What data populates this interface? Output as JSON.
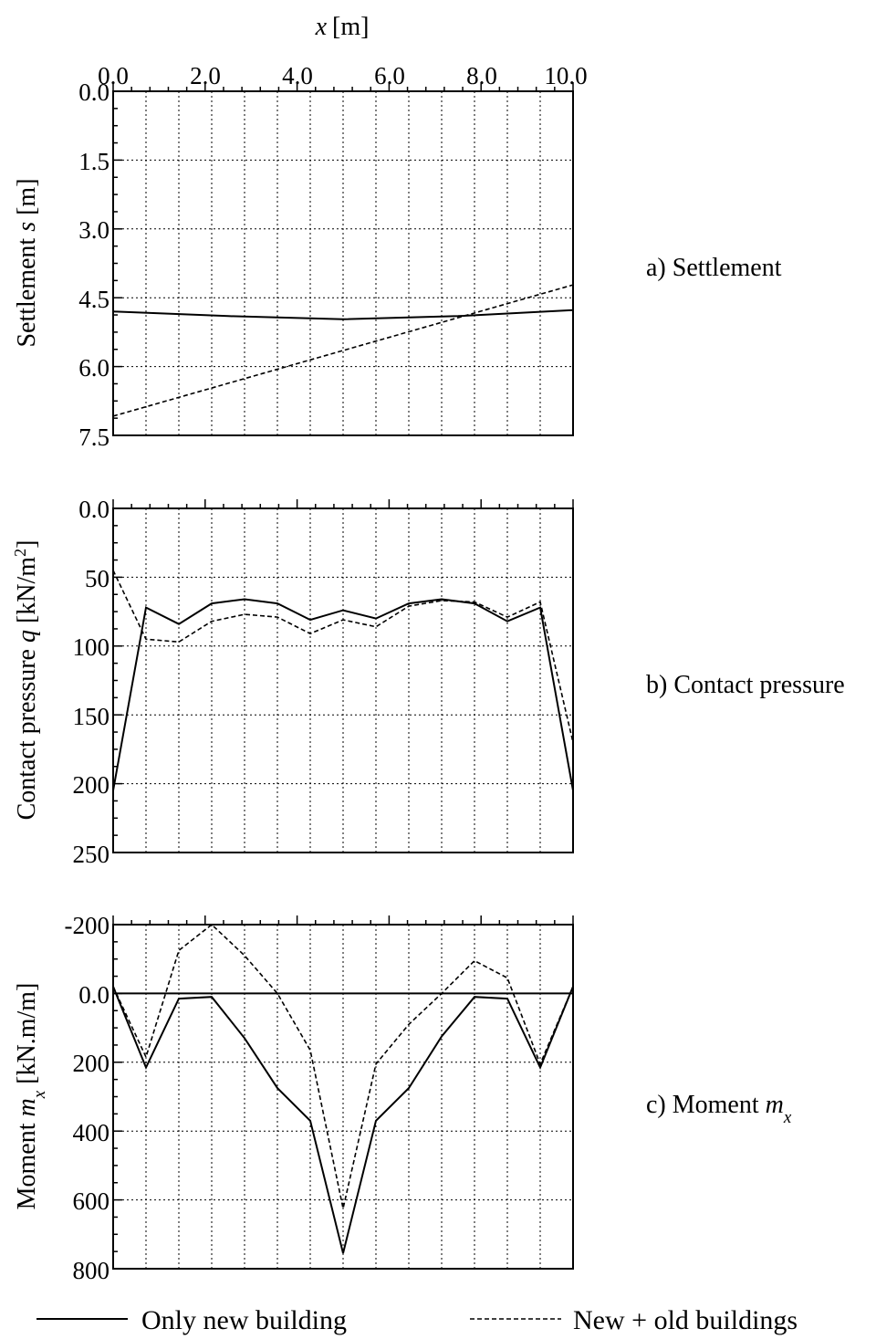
{
  "xaxis": {
    "label": "x",
    "unit": "[m]",
    "tick_labels": [
      "0.0",
      "2.0",
      "4.0",
      "6.0",
      "8.0",
      "10.0"
    ]
  },
  "panels": [
    {
      "label": "a) Settlement",
      "ylabel": {
        "text": "Settlement ",
        "symbol": "s",
        "unit": " [m]"
      },
      "tick_labels": [
        "0.0",
        "1.5",
        "3.0",
        "4.5",
        "6.0",
        "7.5"
      ]
    },
    {
      "label": "b) Contact pressure",
      "ylabel": {
        "text": "Contact pressure ",
        "symbol": "q",
        "unit": " [kN/m",
        "sup": "2",
        "unit_end": "]"
      },
      "tick_labels": [
        "0.0",
        "50",
        "100",
        "150",
        "200",
        "250"
      ]
    },
    {
      "label_text": "c) Moment ",
      "label_symbol": "m",
      "label_sub": "x",
      "ylabel": {
        "text": "Moment ",
        "symbol": "m",
        "sub": "x",
        "unit": " [kN.m/m]"
      },
      "tick_labels": [
        "-200",
        "0.0",
        "200",
        "400",
        "600",
        "800"
      ]
    }
  ],
  "legend": {
    "solid": "Only new building",
    "dashed": "New + old buildings"
  },
  "chart_data": [
    {
      "type": "line",
      "title": "a) Settlement",
      "xlabel": "x [m]",
      "ylabel": "Settlement s [m]",
      "xlim": [
        0,
        10
      ],
      "ylim": [
        0,
        7.5
      ],
      "y_inverted": true,
      "grid": true,
      "x": [
        0,
        2.5,
        5,
        7.5,
        10
      ],
      "series": [
        {
          "name": "Only new building",
          "style": "solid",
          "x": [
            0,
            2.5,
            5,
            7.5,
            10
          ],
          "values": [
            4.8,
            4.9,
            4.97,
            4.9,
            4.77
          ]
        },
        {
          "name": "New + old buildings",
          "style": "dashed",
          "x": [
            0,
            10
          ],
          "values": [
            7.08,
            4.22
          ]
        }
      ]
    },
    {
      "type": "line",
      "title": "b) Contact pressure",
      "xlabel": "x [m]",
      "ylabel": "Contact pressure q [kN/m2]",
      "xlim": [
        0,
        10
      ],
      "ylim": [
        0,
        250
      ],
      "y_inverted": true,
      "grid": true,
      "x": [
        0,
        0.714,
        1.429,
        2.143,
        2.857,
        3.571,
        4.286,
        5,
        5.714,
        6.429,
        7.143,
        7.857,
        8.571,
        9.286,
        10
      ],
      "series": [
        {
          "name": "Only new building",
          "style": "solid",
          "values": [
            205,
            72,
            84,
            69,
            66,
            69,
            81,
            74,
            80,
            69,
            66,
            69,
            82,
            72,
            205
          ]
        },
        {
          "name": "New + old buildings",
          "style": "dashed",
          "values": [
            45,
            95,
            97,
            82,
            77,
            79,
            91,
            81,
            86,
            71,
            67,
            68,
            79,
            68,
            170
          ]
        }
      ]
    },
    {
      "type": "line",
      "title": "c) Moment mx",
      "xlabel": "x [m]",
      "ylabel": "Moment mx [kN.m/m]",
      "xlim": [
        0,
        10
      ],
      "ylim": [
        -200,
        800
      ],
      "y_inverted": true,
      "grid": true,
      "x": [
        0,
        0.714,
        1.429,
        2.143,
        2.857,
        3.571,
        4.286,
        5,
        5.714,
        6.429,
        7.143,
        7.857,
        8.571,
        9.286,
        10
      ],
      "series": [
        {
          "name": "Only new building",
          "style": "solid",
          "values": [
            -20,
            215,
            15,
            10,
            130,
            275,
            370,
            755,
            370,
            275,
            125,
            10,
            15,
            215,
            -20
          ]
        },
        {
          "name": "New + old buildings",
          "style": "dashed",
          "values": [
            -20,
            185,
            -125,
            -200,
            -110,
            0,
            165,
            625,
            205,
            90,
            0,
            -95,
            -45,
            205,
            -20
          ]
        }
      ]
    }
  ]
}
